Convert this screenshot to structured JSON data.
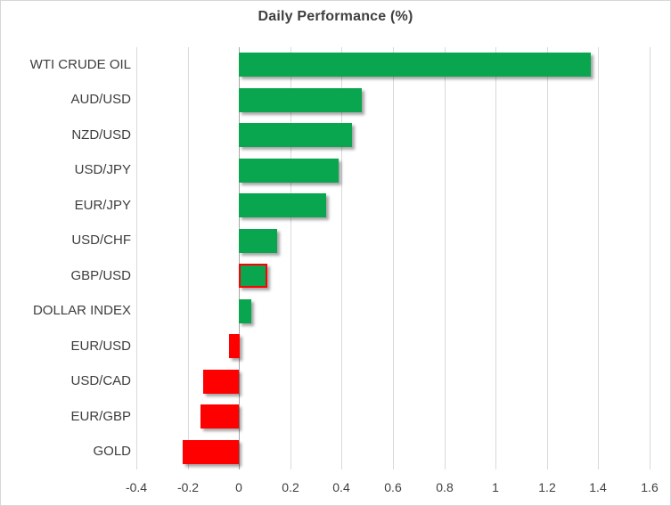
{
  "chart_data": {
    "type": "bar",
    "orientation": "horizontal",
    "title": "Daily Performance (%)",
    "categories": [
      "WTI CRUDE OIL",
      "AUD/USD",
      "NZD/USD",
      "USD/JPY",
      "EUR/JPY",
      "USD/CHF",
      "GBP/USD",
      "DOLLAR INDEX",
      "EUR/USD",
      "USD/CAD",
      "EUR/GBP",
      "GOLD"
    ],
    "values": [
      1.37,
      0.48,
      0.44,
      0.39,
      0.34,
      0.15,
      0.11,
      0.05,
      -0.04,
      -0.14,
      -0.15,
      -0.22
    ],
    "xlabel": "",
    "ylabel": "",
    "xlim": [
      -0.4,
      1.6
    ],
    "xtick_values": [
      -0.4,
      -0.2,
      0,
      0.2,
      0.4,
      0.6,
      0.8,
      1,
      1.2,
      1.4,
      1.6
    ],
    "xtick_labels": [
      "-0.4",
      "-0.2",
      "0",
      "0.2",
      "0.4",
      "0.6",
      "0.8",
      "1",
      "1.2",
      "1.4",
      "1.6"
    ],
    "grid": true,
    "legend": false,
    "highlighted_category": "GBP/USD",
    "colors": {
      "positive": "#0aa64f",
      "negative": "#ff0000",
      "highlight_border": "#ff0000",
      "gridline": "#d9d9d9",
      "axis_line": "#a6a6a6",
      "title_text": "#3f3f3f",
      "label_text": "#3d3d3d",
      "tick_text": "#404040"
    }
  }
}
